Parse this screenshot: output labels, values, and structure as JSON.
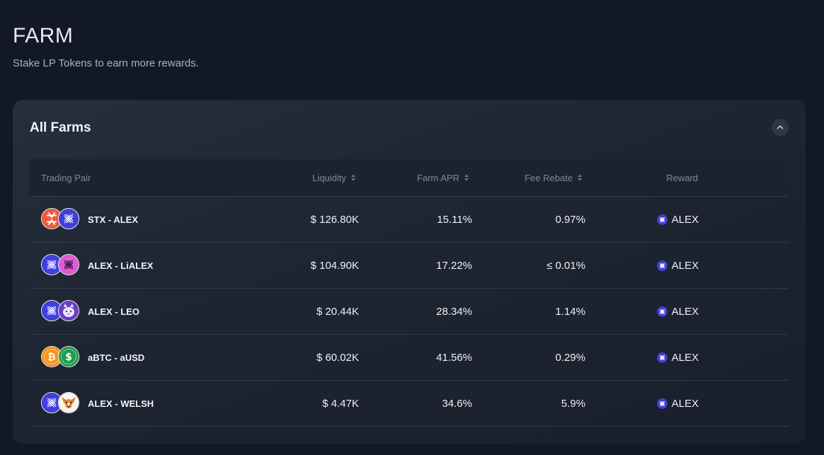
{
  "header": {
    "title": "FARM",
    "subtitle": "Stake LP Tokens to earn more rewards."
  },
  "farms_card": {
    "title": "All Farms",
    "columns": {
      "pair": "Trading Pair",
      "liquidity": "Liquidity",
      "apr": "Farm APR",
      "fee_rebate": "Fee Rebate",
      "reward": "Reward"
    },
    "rows": [
      {
        "pair": "STX - ALEX",
        "token_a": "stx-icon",
        "token_b": "alex-icon",
        "liquidity": "$ 126.80K",
        "apr": "15.11%",
        "fee_rebate": "0.97%",
        "reward": "ALEX"
      },
      {
        "pair": "ALEX - LiALEX",
        "token_a": "alex-icon",
        "token_b": "lialex-icon",
        "liquidity": "$ 104.90K",
        "apr": "17.22%",
        "fee_rebate": "≤ 0.01%",
        "reward": "ALEX"
      },
      {
        "pair": "ALEX - LEO",
        "token_a": "alex-icon",
        "token_b": "leo-cat-icon",
        "liquidity": "$ 20.44K",
        "apr": "28.34%",
        "fee_rebate": "1.14%",
        "reward": "ALEX"
      },
      {
        "pair": "aBTC - aUSD",
        "token_a": "bitcoin-icon",
        "token_b": "dollar-icon",
        "liquidity": "$ 60.02K",
        "apr": "41.56%",
        "fee_rebate": "0.29%",
        "reward": "ALEX"
      },
      {
        "pair": "ALEX - WELSH",
        "token_a": "alex-icon",
        "token_b": "welsh-dog-icon",
        "liquidity": "$ 4.47K",
        "apr": "34.6%",
        "fee_rebate": "5.9%",
        "reward": "ALEX"
      }
    ]
  },
  "colors": {
    "background": "#121827",
    "card": "#232a37",
    "alex_blue": "#3f3fe0",
    "stx_orange": "#ef5a3c",
    "btc_orange": "#f7931a",
    "usd_green": "#1e9b4f",
    "lialex_pink": "#e05bd5"
  }
}
